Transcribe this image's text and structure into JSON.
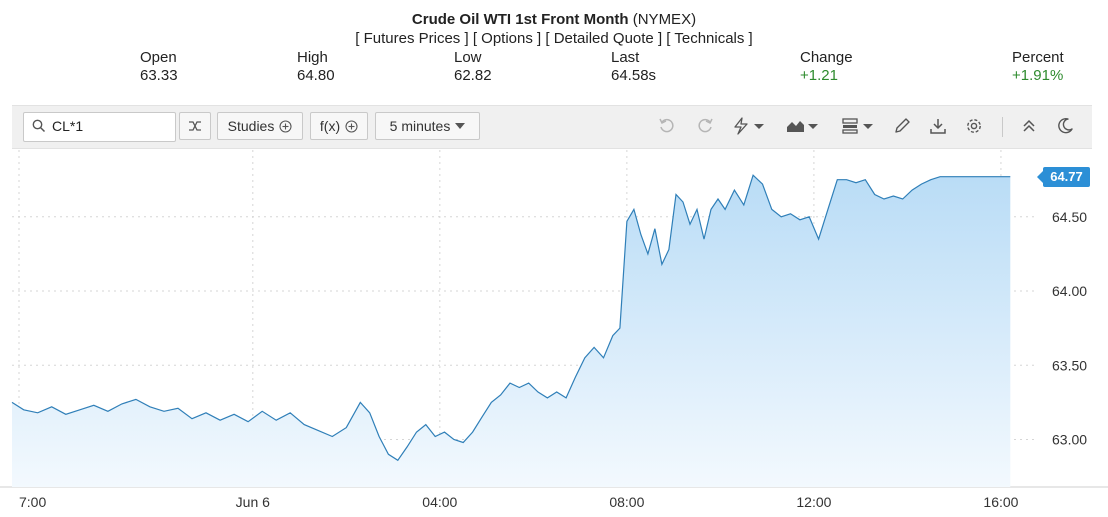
{
  "header": {
    "title_bold": "Crude Oil WTI 1st Front Month",
    "title_rest": "(NYMEX)",
    "links": [
      "[ Futures Prices ]",
      "[ Options ]",
      "[ Detailed Quote ]",
      "[ Technicals ]"
    ]
  },
  "stats": [
    {
      "label": "Open",
      "value": "63.33"
    },
    {
      "label": "High",
      "value": "64.80"
    },
    {
      "label": "Low",
      "value": "62.82"
    },
    {
      "label": "Last",
      "value": "64.58s"
    },
    {
      "label": "Change",
      "value": "+1.21"
    },
    {
      "label": "Percent",
      "value": "+1.91%"
    }
  ],
  "toolbar": {
    "symbol": "CL*1",
    "studies_label": "Studies",
    "fx_label": "f(x)",
    "interval_label": "5 minutes",
    "icons": [
      "search-icon",
      "shuffle-icon",
      "plus-circle-icon",
      "undo-icon",
      "redo-icon",
      "lightning-icon",
      "area-chart-icon",
      "layout-icon",
      "pencil-icon",
      "download-icon",
      "gear-icon",
      "collapse-icon",
      "moon-icon"
    ]
  },
  "colors": {
    "line": "#2f7fb8",
    "fill_top": "#b9dcf6",
    "fill_bottom": "#f3f9fe",
    "price_tag": "#2c8fd6",
    "up": "#2e8b2e"
  },
  "chart_data": {
    "type": "area",
    "last_price_label": "64.77",
    "y_ticks": [
      "64.50",
      "64.00",
      "63.50",
      "63.00"
    ],
    "y_tick_values": [
      64.5,
      64.0,
      63.5,
      63.0
    ],
    "x_ticks": [
      "7:00",
      "Jun 6",
      "04:00",
      "08:00",
      "12:00",
      "16:00"
    ],
    "x_tick_hours": [
      -5,
      0,
      4,
      8,
      12,
      16
    ],
    "ylim": [
      62.68,
      64.95
    ],
    "xlim": [
      -5.15,
      16.75
    ],
    "grid": true,
    "series": [
      {
        "x": [
          -5.15,
          -4.9,
          -4.6,
          -4.3,
          -4.0,
          -3.7,
          -3.4,
          -3.1,
          -2.8,
          -2.5,
          -2.2,
          -1.9,
          -1.6,
          -1.3,
          -1.0,
          -0.7,
          -0.4,
          -0.1,
          0.2,
          0.5,
          0.8,
          1.1,
          1.4,
          1.7,
          2.0,
          2.3,
          2.5,
          2.7,
          2.9,
          3.1,
          3.3,
          3.5,
          3.7,
          3.9,
          4.1,
          4.3,
          4.5,
          4.7,
          4.9,
          5.1,
          5.3,
          5.5,
          5.7,
          5.9,
          6.1,
          6.3,
          6.5,
          6.7,
          6.9,
          7.1,
          7.3,
          7.5,
          7.7,
          7.85,
          8.0,
          8.15,
          8.3,
          8.45,
          8.6,
          8.75,
          8.9,
          9.05,
          9.2,
          9.35,
          9.5,
          9.65,
          9.8,
          9.95,
          10.1,
          10.3,
          10.5,
          10.7,
          10.9,
          11.1,
          11.3,
          11.5,
          11.7,
          11.9,
          12.1,
          12.3,
          12.5,
          12.7,
          12.9,
          13.1,
          13.3,
          13.5,
          13.7,
          13.9,
          14.1,
          14.3,
          14.5,
          14.7,
          14.9,
          15.1,
          15.3,
          15.5,
          15.7,
          15.9,
          16.1,
          16.2
        ],
        "y": [
          63.25,
          63.2,
          63.18,
          63.22,
          63.17,
          63.2,
          63.23,
          63.19,
          63.24,
          63.27,
          63.22,
          63.19,
          63.21,
          63.14,
          63.18,
          63.13,
          63.17,
          63.12,
          63.19,
          63.13,
          63.18,
          63.1,
          63.06,
          63.02,
          63.08,
          63.25,
          63.18,
          63.02,
          62.9,
          62.86,
          62.95,
          63.05,
          63.1,
          63.02,
          63.05,
          63.0,
          62.98,
          63.05,
          63.15,
          63.25,
          63.3,
          63.38,
          63.35,
          63.38,
          63.32,
          63.28,
          63.32,
          63.28,
          63.42,
          63.55,
          63.62,
          63.55,
          63.7,
          63.75,
          64.47,
          64.55,
          64.38,
          64.25,
          64.42,
          64.18,
          64.28,
          64.65,
          64.6,
          64.45,
          64.55,
          64.35,
          64.55,
          64.62,
          64.55,
          64.68,
          64.58,
          64.78,
          64.72,
          64.55,
          64.5,
          64.52,
          64.48,
          64.5,
          64.35,
          64.55,
          64.75,
          64.75,
          64.73,
          64.75,
          64.65,
          64.62,
          64.64,
          64.62,
          64.68,
          64.72,
          64.75,
          64.77,
          64.77,
          64.77,
          64.77,
          64.77,
          64.77,
          64.77,
          64.77,
          64.77
        ]
      }
    ]
  }
}
